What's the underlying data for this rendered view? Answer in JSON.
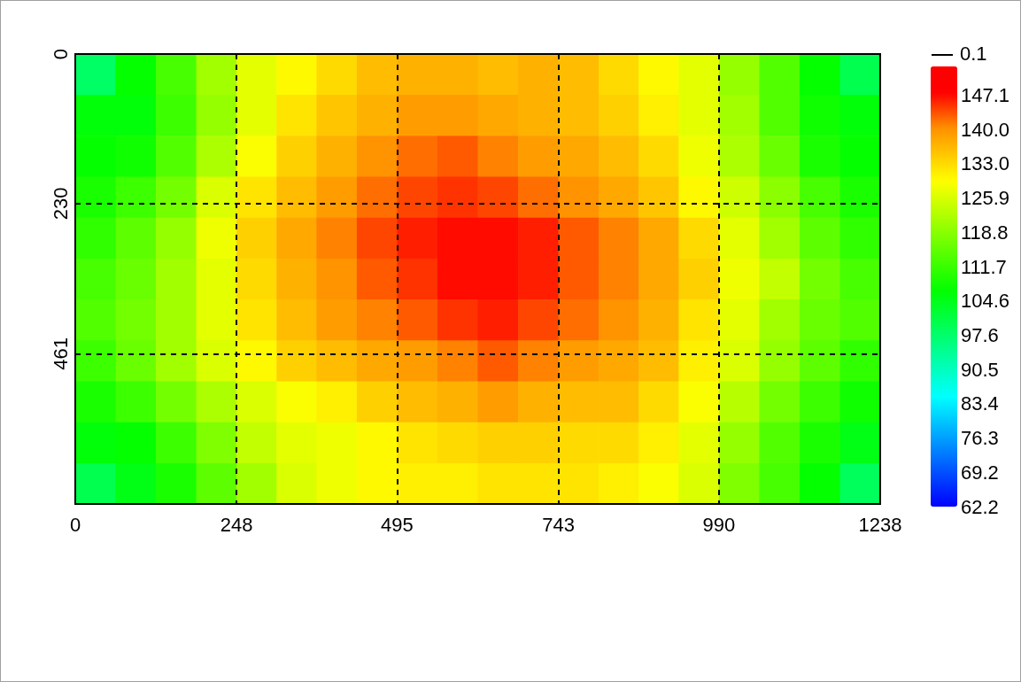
{
  "chart_data": {
    "type": "heatmap",
    "x": [
      31,
      93,
      155,
      217,
      279,
      340,
      402,
      464,
      526,
      588,
      650,
      712,
      774,
      836,
      897,
      959,
      1021,
      1083,
      1145,
      1207
    ],
    "y": [
      31,
      94,
      157,
      220,
      283,
      346,
      409,
      472,
      535,
      598,
      661
    ],
    "cells": [
      [
        98,
        107,
        113,
        121,
        127,
        130,
        133,
        136,
        137,
        137,
        136,
        137,
        136,
        133,
        130,
        127,
        120,
        114,
        107,
        100
      ],
      [
        106,
        106,
        112,
        120,
        127,
        132,
        135,
        137,
        139,
        139,
        138,
        137,
        136,
        134,
        131,
        127,
        121,
        114,
        108,
        106
      ],
      [
        107,
        108,
        114,
        122,
        129,
        134,
        137,
        140,
        142,
        143,
        141,
        139,
        138,
        136,
        133,
        128,
        122,
        116,
        109,
        107
      ],
      [
        109,
        112,
        117,
        126,
        132,
        136,
        139,
        142,
        144,
        145,
        144,
        142,
        140,
        138,
        135,
        130,
        125,
        119,
        113,
        109
      ],
      [
        111,
        115,
        120,
        128,
        134,
        138,
        141,
        144,
        146,
        147,
        147,
        146,
        143,
        141,
        138,
        133,
        127,
        121,
        115,
        111
      ],
      [
        113,
        116,
        121,
        127,
        133,
        137,
        140,
        143,
        145,
        147,
        147,
        146,
        143,
        141,
        138,
        134,
        128,
        124,
        117,
        113
      ],
      [
        114,
        117,
        121,
        127,
        132,
        136,
        139,
        141,
        143,
        145,
        146,
        144,
        142,
        140,
        137,
        132,
        127,
        121,
        116,
        114
      ],
      [
        112,
        116,
        121,
        126,
        130,
        134,
        136,
        138,
        139,
        141,
        143,
        141,
        139,
        138,
        136,
        131,
        126,
        120,
        115,
        111
      ],
      [
        109,
        112,
        117,
        122,
        126,
        129,
        131,
        134,
        136,
        137,
        139,
        137,
        136,
        136,
        133,
        129,
        123,
        117,
        112,
        108
      ],
      [
        106,
        107,
        112,
        118,
        124,
        127,
        128,
        130,
        132,
        133,
        134,
        134,
        133,
        133,
        131,
        127,
        120,
        114,
        109,
        105
      ],
      [
        100,
        105,
        109,
        115,
        121,
        126,
        128,
        130,
        131,
        131,
        132,
        132,
        132,
        131,
        129,
        126,
        118,
        113,
        107,
        99
      ]
    ],
    "xlim": [
      0,
      1238
    ],
    "xticks": [
      0,
      248,
      495,
      743,
      990,
      1238
    ],
    "ylim": [
      692,
      0
    ],
    "yticks": [
      0,
      230,
      461
    ],
    "clim": [
      62.2,
      153
    ],
    "cticks": [
      62.2,
      69.2,
      76.3,
      83.4,
      90.5,
      97.6,
      104.6,
      111.7,
      118.8,
      125.9,
      {
        "value": 133,
        "label": "133.0"
      },
      {
        "value": 140,
        "label": "140.0"
      },
      147.1
    ],
    "grid": true,
    "annotations": [
      "0.1"
    ]
  }
}
